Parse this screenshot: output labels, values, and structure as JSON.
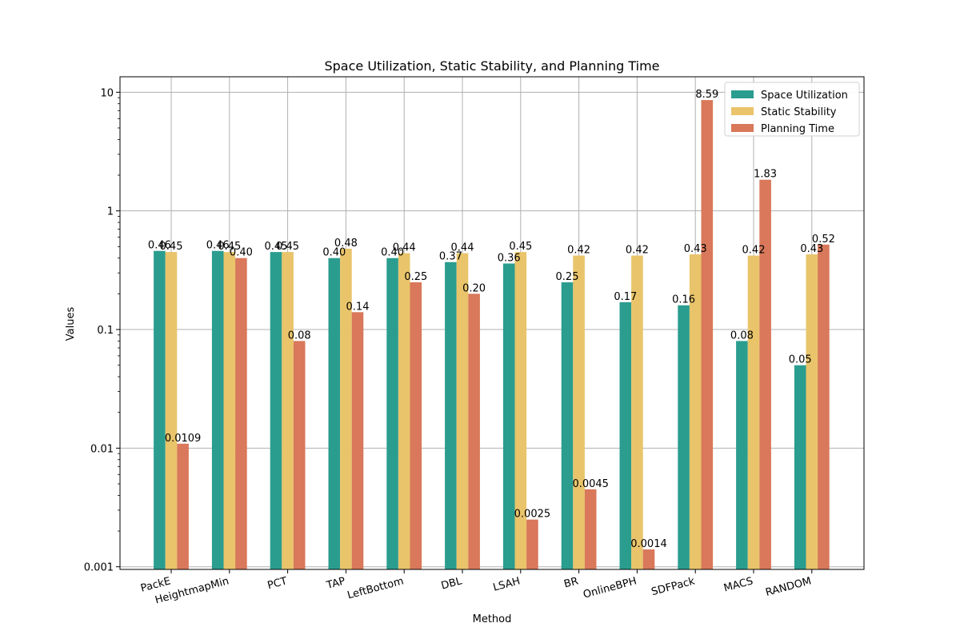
{
  "chart_data": {
    "type": "bar",
    "title": "Space Utilization, Static Stability, and Planning Time",
    "xlabel": "Method",
    "ylabel": "Values",
    "yscale": "log",
    "ylim": [
      0.00095,
      13.5
    ],
    "yticks": [
      0.001,
      0.01,
      0.1,
      1,
      10
    ],
    "ytick_labels": [
      "0.001",
      "0.01",
      "0.1",
      "1",
      "10"
    ],
    "grid": true,
    "legend_position": "top-right",
    "categories": [
      "PackE",
      "HeightmapMin",
      "PCT",
      "TAP",
      "LeftBottom",
      "DBL",
      "LSAH",
      "BR",
      "OnlineBPH",
      "SDFPack",
      "MACS",
      "RANDOM"
    ],
    "series": [
      {
        "name": "Space Utilization",
        "color": "#2a9d8f",
        "values": [
          0.46,
          0.46,
          0.45,
          0.4,
          0.4,
          0.37,
          0.36,
          0.25,
          0.17,
          0.16,
          0.08,
          0.05
        ],
        "labels": [
          "0.46",
          "0.46",
          "0.45",
          "0.40",
          "0.40",
          "0.37",
          "0.36",
          "0.25",
          "0.17",
          "0.16",
          "0.08",
          "0.05"
        ]
      },
      {
        "name": "Static Stability",
        "color": "#e9c46a",
        "values": [
          0.45,
          0.45,
          0.45,
          0.48,
          0.44,
          0.44,
          0.45,
          0.42,
          0.42,
          0.43,
          0.42,
          0.43
        ],
        "labels": [
          "0.45",
          "0.45",
          "0.45",
          "0.48",
          "0.44",
          "0.44",
          "0.45",
          "0.42",
          "0.42",
          "0.43",
          "0.42",
          "0.43"
        ]
      },
      {
        "name": "Planning Time",
        "color": "#d9785a",
        "values": [
          0.0109,
          0.4,
          0.08,
          0.14,
          0.25,
          0.2,
          0.0025,
          0.0045,
          0.0014,
          8.59,
          1.83,
          0.52
        ],
        "labels": [
          "0.0109",
          "0.40",
          "0.08",
          "0.14",
          "0.25",
          "0.20",
          "0.0025",
          "0.0045",
          "0.0014",
          "8.59",
          "1.83",
          "0.52"
        ]
      }
    ]
  }
}
